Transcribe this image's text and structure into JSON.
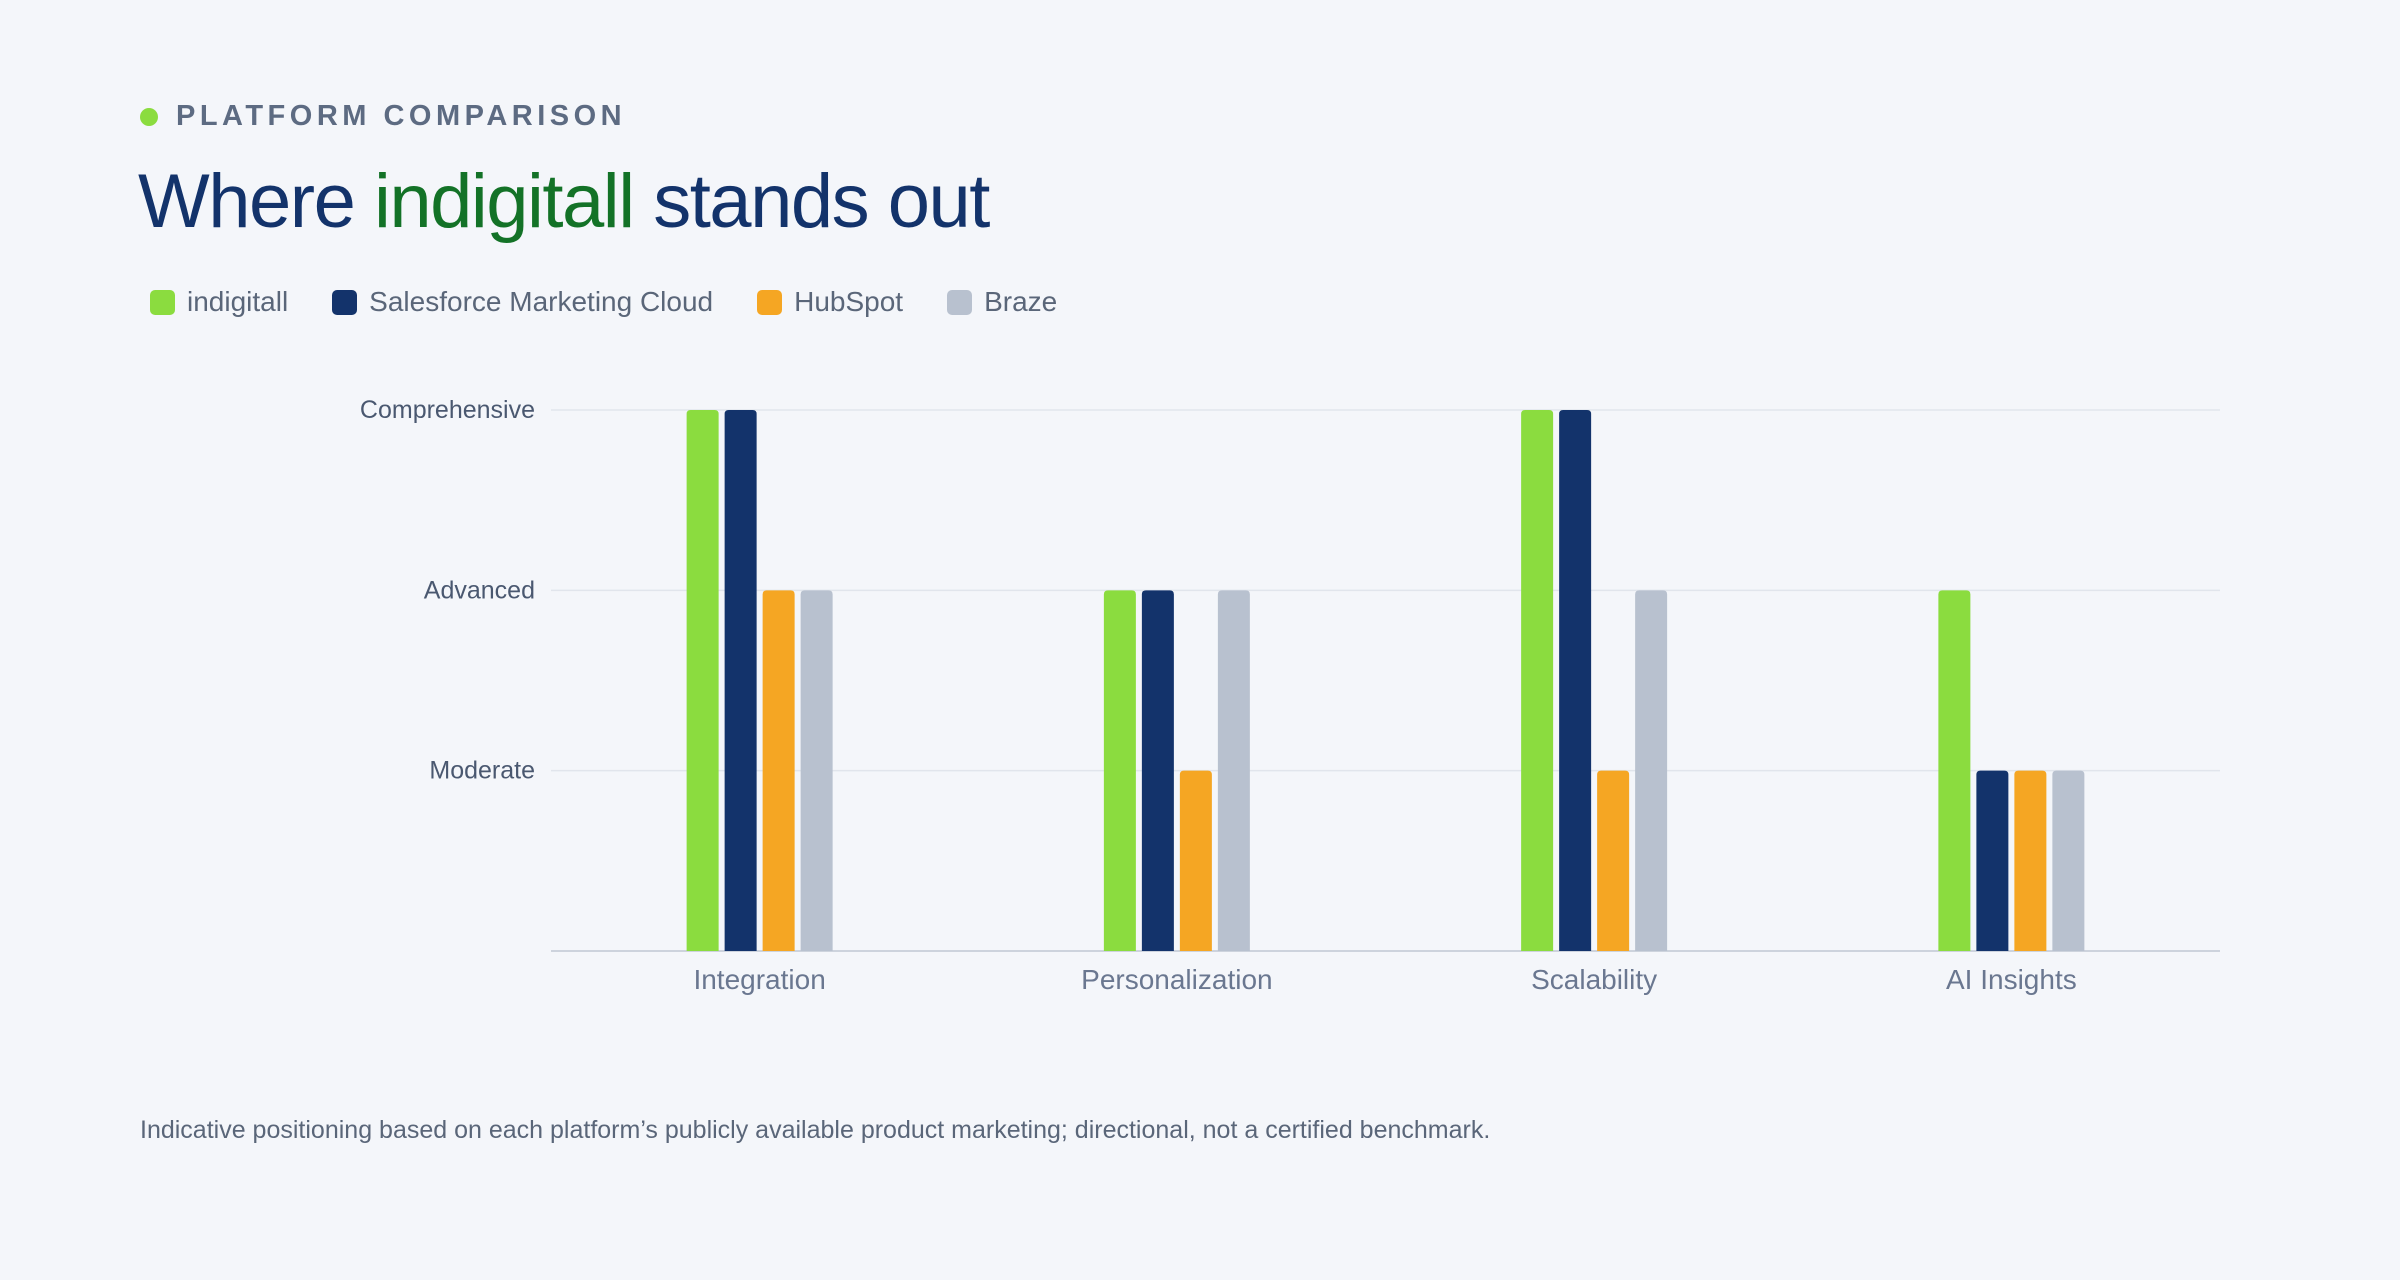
{
  "header": {
    "eyebrow": "PLATFORM COMPARISON",
    "title_prefix": "Where ",
    "title_highlight": "indigitall",
    "title_suffix": " stands out"
  },
  "footnote": "Indicative positioning based on each platform’s publicly available product marketing; directional, not a certified benchmark.",
  "colors": {
    "accent_dot": "#8bdc3f",
    "title": "#13336b",
    "title_highlight": "#137227",
    "grid": "#e1e5ec",
    "axis": "#cdd3dd"
  },
  "chart_data": {
    "type": "bar",
    "title": "Where indigitall stands out",
    "categories": [
      "Integration",
      "Personalization",
      "Scalability",
      "AI Insights"
    ],
    "y_ticks": [
      {
        "value": 1,
        "label": "Moderate"
      },
      {
        "value": 2,
        "label": "Advanced"
      },
      {
        "value": 3,
        "label": "Comprehensive"
      }
    ],
    "ylim": [
      0,
      3
    ],
    "grid": true,
    "legend_position": "top-left",
    "series": [
      {
        "name": "indigitall",
        "color": "#8bdc3f",
        "values": [
          3,
          2,
          3,
          2
        ]
      },
      {
        "name": "Salesforce Marketing Cloud",
        "color": "#13336b",
        "values": [
          3,
          2,
          3,
          1
        ]
      },
      {
        "name": "HubSpot",
        "color": "#f5a623",
        "values": [
          2,
          1,
          1,
          1
        ]
      },
      {
        "name": "Braze",
        "color": "#b8c1cf",
        "values": [
          2,
          2,
          2,
          1
        ]
      }
    ]
  }
}
